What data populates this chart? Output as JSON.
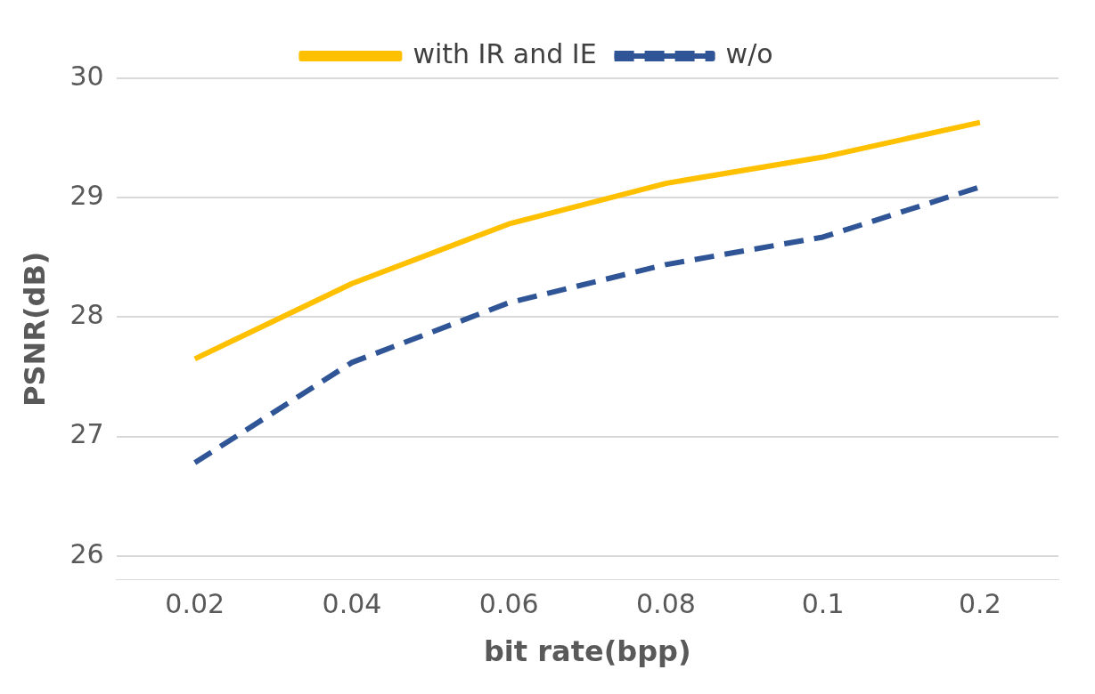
{
  "chart_data": {
    "type": "line",
    "xlabel": "bit rate(bpp)",
    "ylabel": "PSNR(dB)",
    "categories": [
      "0.02",
      "0.04",
      "0.06",
      "0.08",
      "0.1",
      "0.2"
    ],
    "series": [
      {
        "name": "with IR and IE",
        "color": "#ffc000",
        "line_style": "solid",
        "values": [
          27.65,
          28.28,
          28.78,
          29.12,
          29.34,
          29.63
        ]
      },
      {
        "name": "w/o",
        "color": "#2f5597",
        "line_style": "dashed",
        "values": [
          26.78,
          27.62,
          28.12,
          28.44,
          28.67,
          29.09
        ]
      }
    ],
    "ylim": [
      25.8,
      30
    ],
    "yticks": [
      26,
      27,
      28,
      29,
      30
    ],
    "grid": "y",
    "legend": "top",
    "marker": "none"
  }
}
